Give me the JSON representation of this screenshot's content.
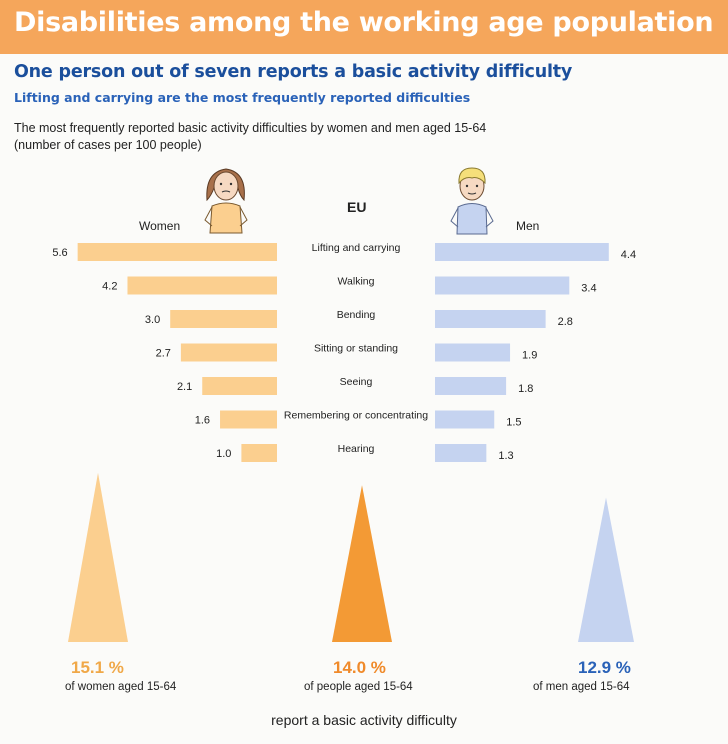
{
  "header": {
    "title": "Disabilities among the working age population"
  },
  "subtitle": "One person out of seven reports a basic activity difficulty",
  "subtitle2": "Lifting and carrying are the most frequently reported difficulties",
  "description": {
    "line1": "The most frequently reported basic activity difficulties by women and men aged 15-64",
    "line2": "(number of cases per 100 people)"
  },
  "labels": {
    "women": "Women",
    "men": "Men",
    "eu": "EU"
  },
  "colors": {
    "women": "#fbcf8f",
    "men": "#c5d3f0",
    "eu": "#f39a35",
    "header": "#f5a65b",
    "title_blue": "#1b4f9c"
  },
  "chart_data": {
    "type": "bar",
    "title": "The most frequently reported basic activity difficulties by women and men aged 15-64 (number of cases per 100 people)",
    "categories": [
      "Lifting and carrying",
      "Walking",
      "Bending",
      "Sitting or standing",
      "Seeing",
      "Remembering or concentrating",
      "Hearing"
    ],
    "series": [
      {
        "name": "Women",
        "values": [
          5.6,
          4.2,
          3.0,
          2.7,
          2.1,
          1.6,
          1.0
        ]
      },
      {
        "name": "Men",
        "values": [
          4.4,
          3.4,
          2.8,
          1.9,
          1.8,
          1.5,
          1.3
        ]
      }
    ],
    "value_labels": {
      "women": [
        "5.6",
        "4.2",
        "3.0",
        "2.7",
        "2.1",
        "1.6",
        "1.0"
      ],
      "men": [
        "4.4",
        "3.4",
        "2.8",
        "1.9",
        "1.8",
        "1.5",
        "1.3"
      ]
    },
    "totals": [
      {
        "name": "Women",
        "value": 15.1,
        "label": "15.1 %",
        "sub": "of women aged 15-64"
      },
      {
        "name": "EU",
        "value": 14.0,
        "label": "14.0 %",
        "sub": "of people aged 15-64"
      },
      {
        "name": "Men",
        "value": 12.9,
        "label": "12.9 %",
        "sub": "of men aged 15-64"
      }
    ]
  },
  "footer": "report a basic activity difficulty"
}
